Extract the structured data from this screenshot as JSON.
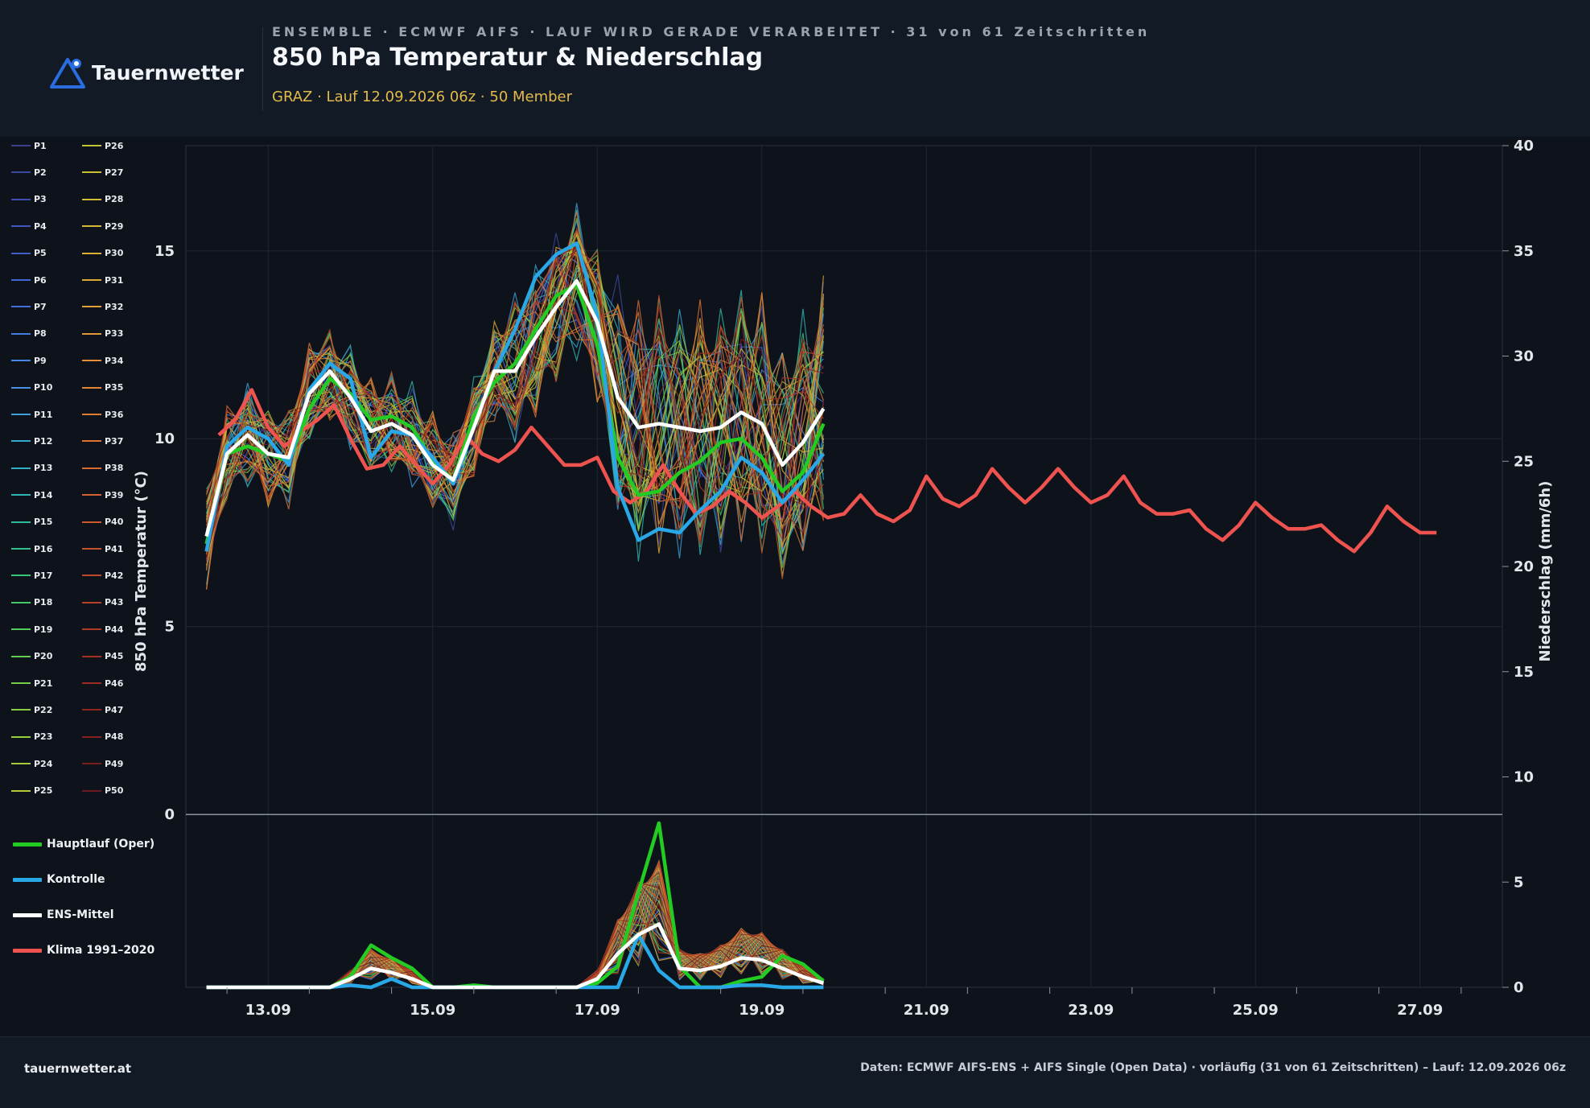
{
  "brand": {
    "name": "Tauernwetter",
    "site": "tauernwetter.at"
  },
  "header": {
    "kicker": "ENSEMBLE · ECMWF AIFS · LAUF WIRD GERADE VERARBEITET · 31 von 61 Zeitschritten",
    "title": "850 hPa Temperatur & Niederschlag",
    "subtitle": "GRAZ · Lauf 12.09.2026 06z · 50 Member"
  },
  "footer": {
    "source": "Daten: ECMWF AIFS-ENS + AIFS Single (Open Data) · vorläufig (31 von 61 Zeitschritten) – Lauf: 12.09.2026 06z"
  },
  "colors": {
    "oper": "#22cc22",
    "control": "#29a8e8",
    "mean": "#ffffff",
    "climate": "#ef5350",
    "background": "#0e131b",
    "panel": "#121a25",
    "accent": "#e4b94b"
  },
  "chart_data": {
    "type": "line",
    "xlabel": "",
    "ylabel": "850 hPa Temperatur (°C)",
    "y2label": "Niederschlag (mm/6h)",
    "ylim": [
      -4.6,
      17.8
    ],
    "y2lim": [
      0,
      40
    ],
    "xlim_days": [
      12.0,
      28.0
    ],
    "yticks": [
      0,
      5,
      10,
      15
    ],
    "y2ticks": [
      0,
      5,
      10,
      15,
      20,
      25,
      30,
      35,
      40
    ],
    "xtick_labels": [
      "13.09",
      "15.09",
      "17.09",
      "19.09",
      "21.09",
      "23.09",
      "25.09",
      "27.09"
    ],
    "grid": true,
    "legend_position": "left",
    "member_count": 50,
    "member_labels": [
      "P1",
      "P2",
      "P3",
      "P4",
      "P5",
      "P6",
      "P7",
      "P8",
      "P9",
      "P10",
      "P11",
      "P12",
      "P13",
      "P14",
      "P15",
      "P16",
      "P17",
      "P18",
      "P19",
      "P20",
      "P21",
      "P22",
      "P23",
      "P24",
      "P25",
      "P26",
      "P27",
      "P28",
      "P29",
      "P30",
      "P31",
      "P32",
      "P33",
      "P34",
      "P35",
      "P36",
      "P37",
      "P38",
      "P39",
      "P40",
      "P41",
      "P42",
      "P43",
      "P44",
      "P45",
      "P46",
      "P47",
      "P48",
      "P49",
      "P50"
    ],
    "x": [
      "12.09 06z",
      "12.09 12z",
      "12.09 18z",
      "13.09 00z",
      "13.09 06z",
      "13.09 12z",
      "13.09 18z",
      "14.09 00z",
      "14.09 06z",
      "14.09 12z",
      "14.09 18z",
      "15.09 00z",
      "15.09 06z",
      "15.09 12z",
      "15.09 18z",
      "16.09 00z",
      "16.09 06z",
      "16.09 12z",
      "16.09 18z",
      "17.09 00z",
      "17.09 06z",
      "17.09 12z",
      "17.09 18z",
      "18.09 00z",
      "18.09 06z",
      "18.09 12z",
      "18.09 18z",
      "19.09 00z",
      "19.09 06z",
      "19.09 12z",
      "19.09 18z"
    ],
    "series": [
      {
        "name": "Hauptlauf (Oper)",
        "color": "#22cc22",
        "temperature": [
          7.2,
          9.6,
          9.8,
          9.6,
          9.4,
          10.8,
          11.6,
          11.2,
          10.5,
          10.6,
          10.3,
          9.4,
          8.9,
          10.6,
          11.5,
          12.0,
          12.9,
          13.8,
          14.1,
          12.5,
          9.5,
          8.5,
          8.6,
          9.1,
          9.4,
          9.9,
          10.0,
          9.5,
          8.6,
          9.1,
          10.4
        ],
        "precipitation": [
          0,
          0,
          0,
          0,
          0,
          0,
          0,
          0.5,
          2.0,
          1.4,
          0.9,
          0,
          0,
          0.1,
          0,
          0,
          0,
          0,
          0,
          0.2,
          1.0,
          4.5,
          7.8,
          1.0,
          0,
          0,
          0.3,
          0.5,
          1.5,
          1.1,
          0.3
        ]
      },
      {
        "name": "Kontrolle",
        "color": "#29a8e8",
        "temperature": [
          7.0,
          9.8,
          10.3,
          10.0,
          9.3,
          11.3,
          12.0,
          11.6,
          9.5,
          10.2,
          10.1,
          9.5,
          8.8,
          10.3,
          11.8,
          12.9,
          14.3,
          14.9,
          15.2,
          13.3,
          8.7,
          7.3,
          7.6,
          7.5,
          8.1,
          8.6,
          9.5,
          9.1,
          8.3,
          8.9,
          9.6
        ],
        "precipitation": [
          0,
          0,
          0,
          0,
          0,
          0,
          0,
          0.1,
          0,
          0.4,
          0,
          0,
          0,
          0,
          0,
          0,
          0,
          0,
          0,
          0,
          0,
          2.5,
          0.8,
          0,
          0,
          0,
          0.1,
          0.1,
          0,
          0,
          0
        ]
      },
      {
        "name": "ENS-Mittel",
        "color": "#ffffff",
        "temperature": [
          7.4,
          9.6,
          10.1,
          9.6,
          9.5,
          11.2,
          11.8,
          11.1,
          10.2,
          10.4,
          10.1,
          9.3,
          8.9,
          10.3,
          11.8,
          11.8,
          12.7,
          13.5,
          14.2,
          13.1,
          11.1,
          10.3,
          10.4,
          10.3,
          10.2,
          10.3,
          10.7,
          10.4,
          9.3,
          9.9,
          10.8
        ],
        "precipitation": [
          0,
          0,
          0,
          0,
          0,
          0,
          0,
          0.4,
          0.9,
          0.7,
          0.4,
          0,
          0,
          0,
          0,
          0,
          0,
          0,
          0,
          0.4,
          1.6,
          2.5,
          3.0,
          0.9,
          0.8,
          1.0,
          1.4,
          1.3,
          0.9,
          0.5,
          0.2
        ]
      },
      {
        "name": "Klima 1991–2020",
        "color": "#ef5350",
        "x_days": [
          12.4,
          12.6,
          12.8,
          13.0,
          13.2,
          13.4,
          13.6,
          13.8,
          14.0,
          14.2,
          14.4,
          14.6,
          14.8,
          15.0,
          15.2,
          15.4,
          15.6,
          15.8,
          16.0,
          16.2,
          16.4,
          16.6,
          16.8,
          17.0,
          17.2,
          17.4,
          17.6,
          17.8,
          18.0,
          18.2,
          18.4,
          18.6,
          18.8,
          19.0,
          19.2,
          19.4,
          19.6,
          19.8,
          20.0,
          20.2,
          20.4,
          20.6,
          20.8,
          21.0,
          21.2,
          21.4,
          21.6,
          21.8,
          22.0,
          22.2,
          22.4,
          22.6,
          22.8,
          23.0,
          23.2,
          23.4,
          23.6,
          23.8,
          24.0,
          24.2,
          24.4,
          24.6,
          24.8,
          25.0,
          25.2,
          25.4,
          25.6,
          25.8,
          26.0,
          26.2,
          26.4,
          26.6,
          26.8,
          27.0,
          27.2
        ],
        "temperature": [
          10.1,
          10.5,
          11.3,
          10.3,
          9.8,
          10.2,
          10.5,
          10.9,
          10.0,
          9.2,
          9.3,
          9.8,
          9.3,
          8.8,
          9.3,
          10.1,
          9.6,
          9.4,
          9.7,
          10.3,
          9.8,
          9.3,
          9.3,
          9.5,
          8.6,
          8.3,
          8.6,
          9.3,
          8.6,
          8.0,
          8.2,
          8.6,
          8.3,
          7.9,
          8.2,
          8.6,
          8.2,
          7.9,
          8.0,
          8.5,
          8.0,
          7.8,
          8.1,
          9.0,
          8.4,
          8.2,
          8.5,
          9.2,
          8.7,
          8.3,
          8.7,
          9.2,
          8.7,
          8.3,
          8.5,
          9.0,
          8.3,
          8.0,
          8.0,
          8.1,
          7.6,
          7.3,
          7.7,
          8.3,
          7.9,
          7.6,
          7.6,
          7.7,
          7.3,
          7.0,
          7.5,
          8.2,
          7.8,
          7.5,
          7.5
        ]
      }
    ]
  },
  "legend": {
    "members": [
      {
        "label": "P1",
        "color": "#3b3f8c"
      },
      {
        "label": "P2",
        "color": "#3d46a0"
      },
      {
        "label": "P3",
        "color": "#3f4cb0"
      },
      {
        "label": "P4",
        "color": "#3f55bf"
      },
      {
        "label": "P5",
        "color": "#405dca"
      },
      {
        "label": "P6",
        "color": "#4166d3"
      },
      {
        "label": "P7",
        "color": "#4270da"
      },
      {
        "label": "P8",
        "color": "#447bdf"
      },
      {
        "label": "P9",
        "color": "#4685e2"
      },
      {
        "label": "P10",
        "color": "#4a91e3"
      },
      {
        "label": "P11",
        "color": "#3d9fdd"
      },
      {
        "label": "P12",
        "color": "#35a8d2"
      },
      {
        "label": "P13",
        "color": "#30b0c4"
      },
      {
        "label": "P14",
        "color": "#2eb7b2"
      },
      {
        "label": "P15",
        "color": "#2ebc9f"
      },
      {
        "label": "P16",
        "color": "#31c18b"
      },
      {
        "label": "P17",
        "color": "#38c577"
      },
      {
        "label": "P18",
        "color": "#43c866"
      },
      {
        "label": "P19",
        "color": "#52cb58"
      },
      {
        "label": "P20",
        "color": "#63cc4e"
      },
      {
        "label": "P21",
        "color": "#74cd47"
      },
      {
        "label": "P22",
        "color": "#86cd41"
      },
      {
        "label": "P23",
        "color": "#96cd3d"
      },
      {
        "label": "P24",
        "color": "#a6cb3a"
      },
      {
        "label": "P25",
        "color": "#b4c838"
      },
      {
        "label": "P26",
        "color": "#bfc635"
      },
      {
        "label": "P27",
        "color": "#c8c233"
      },
      {
        "label": "P28",
        "color": "#d0bd33"
      },
      {
        "label": "P29",
        "color": "#d6b734"
      },
      {
        "label": "P30",
        "color": "#dbb035"
      },
      {
        "label": "P31",
        "color": "#dfa836"
      },
      {
        "label": "P32",
        "color": "#e2a037"
      },
      {
        "label": "P33",
        "color": "#e39837"
      },
      {
        "label": "P34",
        "color": "#e38f37"
      },
      {
        "label": "P35",
        "color": "#e28636"
      },
      {
        "label": "P36",
        "color": "#e07d35"
      },
      {
        "label": "P37",
        "color": "#dd7433"
      },
      {
        "label": "P38",
        "color": "#d96b31"
      },
      {
        "label": "P39",
        "color": "#d4622f"
      },
      {
        "label": "P40",
        "color": "#cf592d"
      },
      {
        "label": "P41",
        "color": "#c9502b"
      },
      {
        "label": "P42",
        "color": "#c24829"
      },
      {
        "label": "P43",
        "color": "#ba4027"
      },
      {
        "label": "P44",
        "color": "#b13925"
      },
      {
        "label": "P45",
        "color": "#a73223"
      },
      {
        "label": "P46",
        "color": "#9c2c22"
      },
      {
        "label": "P47",
        "color": "#912621"
      },
      {
        "label": "P48",
        "color": "#852120"
      },
      {
        "label": "P49",
        "color": "#791d1f"
      },
      {
        "label": "P50",
        "color": "#6d1a1e"
      }
    ],
    "main": [
      {
        "label": "Hauptlauf (Oper)",
        "color": "#22cc22"
      },
      {
        "label": "Kontrolle",
        "color": "#29a8e8"
      },
      {
        "label": "ENS-Mittel",
        "color": "#ffffff"
      },
      {
        "label": "Klima 1991–2020",
        "color": "#ef5350"
      }
    ]
  }
}
